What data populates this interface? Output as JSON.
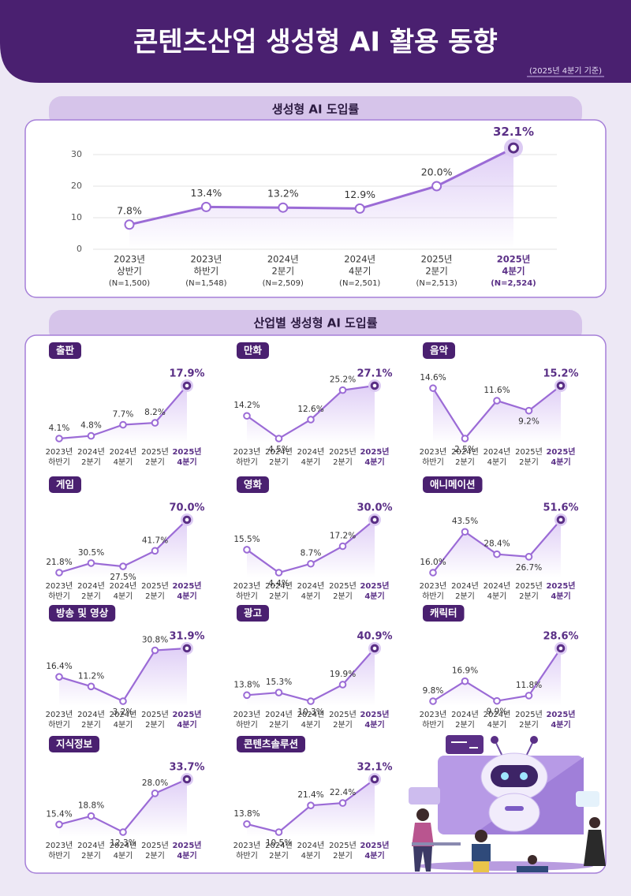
{
  "header": {
    "title": "콘텐츠산업 생성형 AI 활용 동향",
    "note": "(2025년 4분기 기준)"
  },
  "industry_section_title": "산업별 생성형 AI 도입률",
  "chart_data": [
    {
      "type": "line",
      "title": "생성형 AI 도입률",
      "categories": [
        [
          "2023년",
          "상반기",
          "(N=1,500)"
        ],
        [
          "2023년",
          "하반기",
          "(N=1,548)"
        ],
        [
          "2024년",
          "2분기",
          "(N=2,509)"
        ],
        [
          "2024년",
          "4분기",
          "(N=2,501)"
        ],
        [
          "2025년",
          "2분기",
          "(N=2,513)"
        ],
        [
          "2025년",
          "4분기",
          "(N=2,524)"
        ]
      ],
      "values": [
        7.8,
        13.4,
        13.2,
        12.9,
        20.0,
        32.1
      ],
      "value_labels": [
        "7.8%",
        "13.4%",
        "13.2%",
        "12.9%",
        "20.0%",
        "32.1%"
      ],
      "ylim": [
        0,
        35
      ],
      "yticks": [
        0,
        10,
        20,
        30
      ],
      "grid": true,
      "color": "#9b6bd6"
    },
    {
      "type": "line",
      "title": "출판",
      "categories": [
        [
          "2023년",
          "하반기"
        ],
        [
          "2024년",
          "2분기"
        ],
        [
          "2024년",
          "4분기"
        ],
        [
          "2025년",
          "2분기"
        ],
        [
          "2025년",
          "4분기"
        ]
      ],
      "values": [
        4.1,
        4.8,
        7.7,
        8.2,
        17.9
      ],
      "value_labels": [
        "4.1%",
        "4.8%",
        "7.7%",
        "8.2%",
        "17.9%"
      ],
      "color": "#9b6bd6"
    },
    {
      "type": "line",
      "title": "만화",
      "categories": [
        [
          "2023년",
          "하반기"
        ],
        [
          "2024년",
          "2분기"
        ],
        [
          "2024년",
          "4분기"
        ],
        [
          "2025년",
          "2분기"
        ],
        [
          "2025년",
          "4분기"
        ]
      ],
      "values": [
        14.2,
        4.5,
        12.6,
        25.2,
        27.1
      ],
      "value_labels": [
        "14.2%",
        "4.5%",
        "12.6%",
        "25.2%",
        "27.1%"
      ],
      "color": "#9b6bd6"
    },
    {
      "type": "line",
      "title": "음악",
      "categories": [
        [
          "2023년",
          "하반기"
        ],
        [
          "2024년",
          "2분기"
        ],
        [
          "2024년",
          "4분기"
        ],
        [
          "2025년",
          "2분기"
        ],
        [
          "2025년",
          "4분기"
        ]
      ],
      "values": [
        14.6,
        2.5,
        11.6,
        9.2,
        15.2
      ],
      "value_labels": [
        "14.6%",
        "2.5%",
        "11.6%",
        "9.2%",
        "15.2%"
      ],
      "color": "#9b6bd6"
    },
    {
      "type": "line",
      "title": "게임",
      "categories": [
        [
          "2023년",
          "하반기"
        ],
        [
          "2024년",
          "2분기"
        ],
        [
          "2024년",
          "4분기"
        ],
        [
          "2025년",
          "2분기"
        ],
        [
          "2025년",
          "4분기"
        ]
      ],
      "values": [
        21.8,
        30.5,
        27.5,
        41.7,
        70.0
      ],
      "value_labels": [
        "21.8%",
        "30.5%",
        "27.5%",
        "41.7%",
        "70.0%"
      ],
      "color": "#9b6bd6"
    },
    {
      "type": "line",
      "title": "영화",
      "categories": [
        [
          "2023년",
          "하반기"
        ],
        [
          "2024년",
          "2분기"
        ],
        [
          "2024년",
          "4분기"
        ],
        [
          "2025년",
          "2분기"
        ],
        [
          "2025년",
          "4분기"
        ]
      ],
      "values": [
        15.5,
        4.4,
        8.7,
        17.2,
        30.0
      ],
      "value_labels": [
        "15.5%",
        "4.4%",
        "8.7%",
        "17.2%",
        "30.0%"
      ],
      "color": "#9b6bd6"
    },
    {
      "type": "line",
      "title": "애니메이션",
      "categories": [
        [
          "2023년",
          "하반기"
        ],
        [
          "2024년",
          "2분기"
        ],
        [
          "2024년",
          "4분기"
        ],
        [
          "2025년",
          "2분기"
        ],
        [
          "2025년",
          "4분기"
        ]
      ],
      "values": [
        16.0,
        43.5,
        28.4,
        26.7,
        51.6
      ],
      "value_labels": [
        "16.0%",
        "43.5%",
        "28.4%",
        "26.7%",
        "51.6%"
      ],
      "color": "#9b6bd6"
    },
    {
      "type": "line",
      "title": "방송 및 영상",
      "categories": [
        [
          "2023년",
          "하반기"
        ],
        [
          "2024년",
          "2분기"
        ],
        [
          "2024년",
          "4분기"
        ],
        [
          "2025년",
          "2분기"
        ],
        [
          "2025년",
          "4분기"
        ]
      ],
      "values": [
        16.4,
        11.2,
        3.2,
        30.8,
        31.9
      ],
      "value_labels": [
        "16.4%",
        "11.2%",
        "3.2%",
        "30.8%",
        "31.9%"
      ],
      "color": "#9b6bd6"
    },
    {
      "type": "line",
      "title": "광고",
      "categories": [
        [
          "2023년",
          "하반기"
        ],
        [
          "2024년",
          "2분기"
        ],
        [
          "2024년",
          "4분기"
        ],
        [
          "2025년",
          "2분기"
        ],
        [
          "2025년",
          "4분기"
        ]
      ],
      "values": [
        13.8,
        15.3,
        10.3,
        19.9,
        40.9
      ],
      "value_labels": [
        "13.8%",
        "15.3%",
        "10.3%",
        "19.9%",
        "40.9%"
      ],
      "color": "#9b6bd6"
    },
    {
      "type": "line",
      "title": "캐릭터",
      "categories": [
        [
          "2023년",
          "하반기"
        ],
        [
          "2024년",
          "2분기"
        ],
        [
          "2024년",
          "4분기"
        ],
        [
          "2025년",
          "2분기"
        ],
        [
          "2025년",
          "4분기"
        ]
      ],
      "values": [
        9.8,
        16.9,
        9.9,
        11.8,
        28.6
      ],
      "value_labels": [
        "9.8%",
        "16.9%",
        "9.9%",
        "11.8%",
        "28.6%"
      ],
      "color": "#9b6bd6"
    },
    {
      "type": "line",
      "title": "지식정보",
      "categories": [
        [
          "2023년",
          "하반기"
        ],
        [
          "2024년",
          "2분기"
        ],
        [
          "2024년",
          "4분기"
        ],
        [
          "2025년",
          "2분기"
        ],
        [
          "2025년",
          "4분기"
        ]
      ],
      "values": [
        15.4,
        18.8,
        12.3,
        28.0,
        33.7
      ],
      "value_labels": [
        "15.4%",
        "18.8%",
        "12.3%",
        "28.0%",
        "33.7%"
      ],
      "color": "#9b6bd6"
    },
    {
      "type": "line",
      "title": "콘텐츠솔루션",
      "categories": [
        [
          "2023년",
          "하반기"
        ],
        [
          "2024년",
          "2분기"
        ],
        [
          "2024년",
          "4분기"
        ],
        [
          "2025년",
          "2분기"
        ],
        [
          "2025년",
          "4분기"
        ]
      ],
      "values": [
        13.8,
        10.5,
        21.4,
        22.4,
        32.1
      ],
      "value_labels": [
        "13.8%",
        "10.5%",
        "21.4%",
        "22.4%",
        "32.1%"
      ],
      "color": "#9b6bd6"
    }
  ]
}
